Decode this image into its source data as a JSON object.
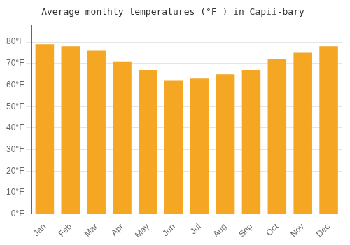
{
  "chart_data": {
    "type": "bar",
    "title": "Average monthly temperatures (°F ) in Capií-bary",
    "categories": [
      "Jan",
      "Feb",
      "Mar",
      "Apr",
      "May",
      "Jun",
      "Jul",
      "Aug",
      "Sep",
      "Oct",
      "Nov",
      "Dec"
    ],
    "values": [
      79,
      78,
      76,
      71,
      67,
      62,
      63,
      65,
      67,
      72,
      75,
      78
    ],
    "color": "#F5A623",
    "ylim": [
      0,
      88
    ],
    "yticks": [
      {
        "value": 0,
        "label": "0°F"
      },
      {
        "value": 10,
        "label": "10°F"
      },
      {
        "value": 20,
        "label": "20°F"
      },
      {
        "value": 30,
        "label": "30°F"
      },
      {
        "value": 40,
        "label": "40°F"
      },
      {
        "value": 50,
        "label": "50°F"
      },
      {
        "value": 60,
        "label": "60°F"
      },
      {
        "value": 70,
        "label": "70°F"
      },
      {
        "value": 80,
        "label": "80°F"
      }
    ],
    "grid": true
  }
}
